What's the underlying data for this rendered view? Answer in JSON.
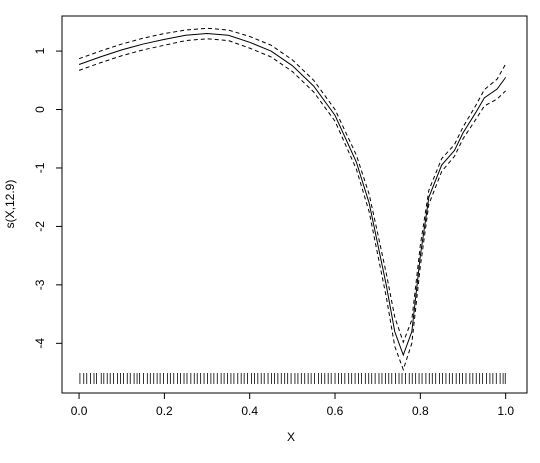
{
  "chart_data": {
    "type": "line",
    "xlabel": "X",
    "ylabel": "s(X,12.9)",
    "xlim": [
      -0.04,
      1.05
    ],
    "ylim": [
      -4.85,
      1.6
    ],
    "xticks": [
      {
        "value": 0,
        "label": "0.0"
      },
      {
        "value": 0.2,
        "label": "0.2"
      },
      {
        "value": 0.4,
        "label": "0.4"
      },
      {
        "value": 0.6,
        "label": "0.6"
      },
      {
        "value": 0.8,
        "label": "0.8"
      },
      {
        "value": 1,
        "label": "1.0"
      }
    ],
    "yticks": [
      -4,
      -3,
      -2,
      -1,
      0,
      1
    ],
    "x": [
      0,
      0.05,
      0.1,
      0.15,
      0.2,
      0.25,
      0.3,
      0.35,
      0.4,
      0.45,
      0.5,
      0.55,
      0.6,
      0.65,
      0.68,
      0.7,
      0.72,
      0.74,
      0.76,
      0.78,
      0.8,
      0.82,
      0.85,
      0.88,
      0.9,
      0.93,
      0.95,
      0.98,
      1
    ],
    "series": [
      {
        "color": "#000000",
        "dash": false,
        "values": [
          0.77,
          0.9,
          1.02,
          1.12,
          1.2,
          1.27,
          1.3,
          1.27,
          1.15,
          1.0,
          0.75,
          0.4,
          -0.1,
          -0.9,
          -1.6,
          -2.3,
          -3.0,
          -3.8,
          -4.2,
          -3.8,
          -2.5,
          -1.5,
          -0.95,
          -0.7,
          -0.4,
          -0.05,
          0.2,
          0.35,
          0.55
        ]
      },
      {
        "color": "#000000",
        "dash": true,
        "values": [
          0.87,
          1.0,
          1.12,
          1.22,
          1.3,
          1.36,
          1.39,
          1.36,
          1.25,
          1.1,
          0.85,
          0.5,
          0.0,
          -0.78,
          -1.45,
          -2.12,
          -2.8,
          -3.55,
          -3.98,
          -3.6,
          -2.32,
          -1.38,
          -0.84,
          -0.6,
          -0.3,
          0.07,
          0.34,
          0.52,
          0.78
        ]
      },
      {
        "color": "#000000",
        "dash": true,
        "values": [
          0.67,
          0.8,
          0.92,
          1.02,
          1.1,
          1.18,
          1.21,
          1.18,
          1.05,
          0.9,
          0.65,
          0.3,
          -0.2,
          -1.02,
          -1.75,
          -2.48,
          -3.2,
          -4.05,
          -4.45,
          -4.0,
          -2.68,
          -1.62,
          -1.06,
          -0.8,
          -0.5,
          -0.17,
          0.06,
          0.18,
          0.32
        ]
      }
    ],
    "rug": [
      0.002,
      0.011,
      0.018,
      0.027,
      0.035,
      0.041,
      0.052,
      0.058,
      0.066,
      0.073,
      0.081,
      0.09,
      0.097,
      0.104,
      0.113,
      0.12,
      0.129,
      0.136,
      0.142,
      0.151,
      0.16,
      0.167,
      0.175,
      0.183,
      0.19,
      0.198,
      0.207,
      0.214,
      0.222,
      0.231,
      0.238,
      0.246,
      0.253,
      0.262,
      0.27,
      0.277,
      0.285,
      0.293,
      0.301,
      0.309,
      0.316,
      0.324,
      0.333,
      0.34,
      0.348,
      0.356,
      0.363,
      0.372,
      0.38,
      0.387,
      0.395,
      0.404,
      0.411,
      0.419,
      0.427,
      0.434,
      0.443,
      0.451,
      0.458,
      0.466,
      0.474,
      0.482,
      0.489,
      0.497,
      0.506,
      0.513,
      0.521,
      0.529,
      0.537,
      0.544,
      0.552,
      0.561,
      0.568,
      0.576,
      0.584,
      0.591,
      0.6,
      0.608,
      0.615,
      0.623,
      0.632,
      0.639,
      0.647,
      0.655,
      0.662,
      0.671,
      0.679,
      0.686,
      0.694,
      0.703,
      0.71,
      0.718,
      0.726,
      0.733,
      0.742,
      0.75,
      0.757,
      0.765,
      0.774,
      0.781,
      0.789,
      0.797,
      0.804,
      0.813,
      0.821,
      0.828,
      0.836,
      0.845,
      0.852,
      0.86,
      0.868,
      0.875,
      0.884,
      0.892,
      0.899,
      0.907,
      0.916,
      0.923,
      0.931,
      0.939,
      0.946,
      0.955,
      0.963,
      0.97,
      0.978,
      0.987,
      0.994,
      0.999
    ]
  }
}
